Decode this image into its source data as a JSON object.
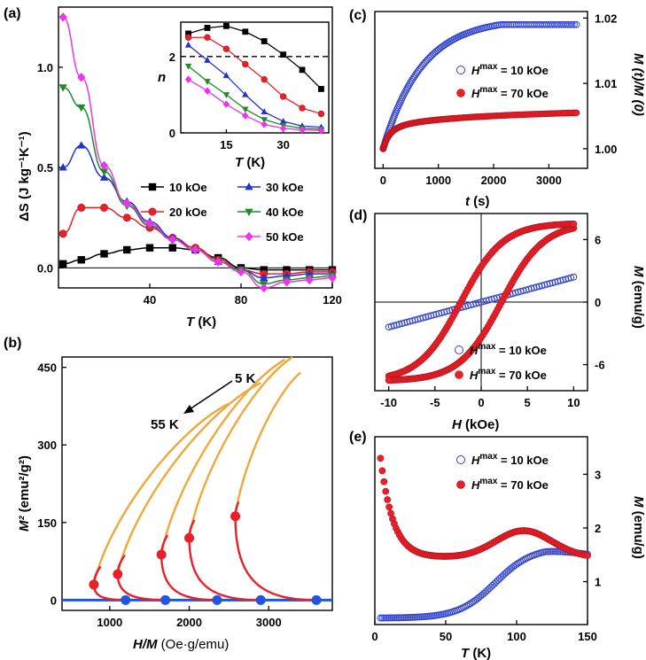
{
  "chart_data": [
    {
      "id": "a",
      "panel_label": "(a)",
      "type": "line",
      "xlabel": "T",
      "xunit": "(K)",
      "ylabel": "ΔS",
      "yunit": "(J kg⁻¹K⁻¹)",
      "xlim": [
        0,
        120
      ],
      "ylim": [
        -0.1,
        1.3
      ],
      "xticks": [
        "40",
        "80",
        "120"
      ],
      "yticks": [
        "0.0",
        "0.5",
        "1.0"
      ],
      "x": [
        2,
        10,
        20,
        30,
        40,
        50,
        60,
        70,
        80,
        90,
        100,
        110,
        120
      ],
      "series": [
        {
          "name": "10 kOe",
          "color": "#000000",
          "marker": "square",
          "values": [
            0.02,
            0.04,
            0.07,
            0.09,
            0.1,
            0.1,
            0.09,
            0.05,
            0.0,
            -0.01,
            -0.01,
            -0.01,
            -0.01
          ]
        },
        {
          "name": "20 kOe",
          "color": "#e8202a",
          "marker": "circle",
          "values": [
            0.17,
            0.3,
            0.3,
            0.25,
            0.2,
            0.15,
            0.1,
            0.04,
            -0.01,
            -0.03,
            -0.03,
            -0.02,
            -0.02
          ]
        },
        {
          "name": "30 kOe",
          "color": "#2233cc",
          "marker": "triangle-up",
          "values": [
            0.5,
            0.61,
            0.45,
            0.33,
            0.23,
            0.15,
            0.09,
            0.03,
            -0.01,
            -0.05,
            -0.04,
            -0.03,
            -0.03
          ]
        },
        {
          "name": "40 kOe",
          "color": "#1f8a2a",
          "marker": "triangle-down",
          "values": [
            0.9,
            0.8,
            0.48,
            0.31,
            0.21,
            0.14,
            0.09,
            0.03,
            -0.01,
            -0.08,
            -0.06,
            -0.05,
            -0.04
          ]
        },
        {
          "name": "50 kOe",
          "color": "#ee33ee",
          "marker": "diamond",
          "values": [
            1.25,
            0.95,
            0.51,
            0.32,
            0.22,
            0.14,
            0.09,
            0.03,
            -0.02,
            -0.1,
            -0.07,
            -0.06,
            -0.05
          ]
        }
      ],
      "zero_line": true,
      "legend_placement": "center-right",
      "inset": {
        "ylabel": "n",
        "xlabel": "T",
        "xunit": "(K)",
        "xlim": [
          3,
          42
        ],
        "ylim": [
          0,
          2.9
        ],
        "xticks": [
          "15",
          "30"
        ],
        "yticks": [
          "0",
          "2"
        ],
        "reference_line": 2,
        "x": [
          5,
          10,
          15,
          20,
          25,
          30,
          35,
          40
        ],
        "series": [
          {
            "name": "10 kOe",
            "color": "#000000",
            "marker": "square",
            "values": [
              2.6,
              2.75,
              2.8,
              2.65,
              2.4,
              2.05,
              1.65,
              1.15
            ]
          },
          {
            "name": "20 kOe",
            "color": "#e8202a",
            "marker": "circle",
            "values": [
              2.5,
              2.5,
              2.2,
              1.8,
              1.4,
              0.95,
              0.65,
              0.5
            ]
          },
          {
            "name": "30 kOe",
            "color": "#2233cc",
            "marker": "triangle-up",
            "values": [
              2.3,
              1.9,
              1.5,
              1.0,
              0.55,
              0.3,
              0.18,
              0.15
            ]
          },
          {
            "name": "40 kOe",
            "color": "#1f8a2a",
            "marker": "triangle-down",
            "values": [
              1.75,
              1.35,
              1.0,
              0.62,
              0.35,
              0.2,
              0.12,
              0.1
            ]
          },
          {
            "name": "50 kOe",
            "color": "#ee33ee",
            "marker": "diamond",
            "values": [
              1.4,
              1.1,
              0.75,
              0.45,
              0.22,
              0.12,
              0.08,
              0.06
            ]
          }
        ]
      }
    },
    {
      "id": "b",
      "panel_label": "(b)",
      "type": "line",
      "xlabel": "H/M",
      "xunit": "(Oe·g/emu)",
      "ylabel": "M²",
      "yunit": "(emu²/g²)",
      "xlim": [
        400,
        3800
      ],
      "ylim": [
        -20,
        470
      ],
      "xticks": [
        "1000",
        "2000",
        "3000"
      ],
      "yticks": [
        "0",
        "150",
        "300",
        "450"
      ],
      "annotation_high": "5 K",
      "annotation_low": "55 K",
      "orange_color": "#f0a83a",
      "red_color": "#e8202a",
      "blue_color": "#2255dd",
      "isotherms": [
        {
          "start": [
            800,
            30
          ],
          "end": [
            2500,
            380
          ]
        },
        {
          "start": [
            1100,
            50
          ],
          "end": [
            2900,
            420
          ]
        },
        {
          "start": [
            1650,
            88
          ],
          "end": [
            3200,
            465
          ]
        },
        {
          "start": [
            2000,
            120
          ],
          "end": [
            3300,
            470
          ]
        },
        {
          "start": [
            2580,
            162
          ],
          "end": [
            3400,
            440
          ]
        }
      ],
      "red_curve_ends": [
        1200,
        1700,
        2350,
        2900,
        3600
      ],
      "blue_points": [
        1200,
        1700,
        2350,
        2900,
        3600
      ]
    },
    {
      "id": "c",
      "panel_label": "(c)",
      "type": "scatter",
      "xlabel": "t",
      "xunit": "(s)",
      "ylabel": "M (t)/M (0)",
      "xlim": [
        -150,
        3700
      ],
      "ylim": [
        0.997,
        1.021
      ],
      "xticks": [
        "0",
        "1000",
        "2000",
        "3000"
      ],
      "yticks": [
        "1.00",
        "1.01",
        "1.02"
      ],
      "y_axis_side": "right",
      "series": [
        {
          "name": "Hmax = 10 kOe",
          "color": "#3344cc",
          "marker": "open-circle",
          "final_value": 1.019
        },
        {
          "name": "Hmax = 70 kOe",
          "color": "#e8202a",
          "marker": "filled-circle",
          "final_value": 1.0055
        }
      ],
      "legend_labels": [
        {
          "main": "H",
          "sup": "max",
          "rest": " = 10 kOe"
        },
        {
          "main": "H",
          "sup": "max",
          "rest": " = 70 kOe"
        }
      ],
      "legend_placement": "center-right"
    },
    {
      "id": "d",
      "panel_label": "(d)",
      "type": "scatter",
      "xlabel": "H",
      "xunit": "(kOe)",
      "ylabel": "M",
      "yunit": "(emu/g)",
      "xlim": [
        -11.5,
        11.5
      ],
      "ylim": [
        -8.5,
        8.5
      ],
      "xticks": [
        "-10",
        "-5",
        "0",
        "5",
        "10"
      ],
      "yticks": [
        "-6",
        "0",
        "6"
      ],
      "y_axis_side": "right",
      "series": [
        {
          "name": "Hmax = 10 kOe",
          "color": "#3344cc",
          "marker": "open-circle",
          "m_at_10": 2.4
        },
        {
          "name": "Hmax = 70 kOe",
          "color": "#e8202a",
          "marker": "filled-circle",
          "m_at_10": 7.5,
          "remanence": 3.5,
          "coercive_field": 2.2
        }
      ],
      "legend_labels": [
        {
          "main": "H",
          "sup": "max",
          "rest": " = 10 kOe"
        },
        {
          "main": "H",
          "sup": "max",
          "rest": " = 70 kOe"
        }
      ],
      "legend_placement": "bottom-right"
    },
    {
      "id": "e",
      "panel_label": "(e)",
      "type": "scatter",
      "xlabel": "T",
      "xunit": "(K)",
      "ylabel": "M",
      "yunit": "(emu/g)",
      "xlim": [
        0,
        150
      ],
      "ylim": [
        0.2,
        3.7
      ],
      "xticks": [
        "0",
        "50",
        "100",
        "150"
      ],
      "yticks": [
        "1",
        "2",
        "3"
      ],
      "y_axis_side": "right",
      "series": [
        {
          "name": "Hmax = 10 kOe",
          "color": "#3344cc",
          "marker": "open-circle"
        },
        {
          "name": "Hmax = 70 kOe",
          "color": "#e8202a",
          "marker": "filled-circle"
        }
      ],
      "legend_labels": [
        {
          "main": "H",
          "sup": "max",
          "rest": " = 10 kOe"
        },
        {
          "main": "H",
          "sup": "max",
          "rest": " = 70 kOe"
        }
      ],
      "legend_placement": "top-right"
    }
  ]
}
